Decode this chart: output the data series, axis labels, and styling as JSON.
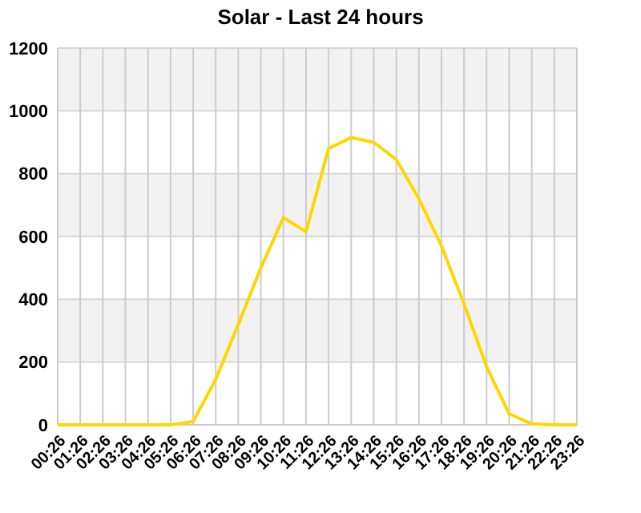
{
  "chart_data": {
    "type": "line",
    "title": "Solar - Last 24 hours",
    "categories": [
      "00:26",
      "01:26",
      "02:26",
      "03:26",
      "04:26",
      "05:26",
      "06:26",
      "07:26",
      "08:26",
      "09:26",
      "10:26",
      "11:26",
      "12:26",
      "13:26",
      "14:26",
      "15:26",
      "16:26",
      "17:26",
      "18:26",
      "19:26",
      "20:26",
      "21:26",
      "22:26",
      "23:26"
    ],
    "series": [
      {
        "color": "#ffd700",
        "values": [
          0,
          0,
          0,
          0,
          0,
          0,
          10,
          145,
          320,
          500,
          660,
          615,
          880,
          915,
          900,
          845,
          720,
          570,
          385,
          185,
          35,
          3,
          0,
          0
        ]
      }
    ],
    "ylim": [
      0,
      1200
    ],
    "yticks": [
      0,
      200,
      400,
      600,
      800,
      1000,
      1200
    ],
    "grid": true,
    "marker": "none"
  }
}
